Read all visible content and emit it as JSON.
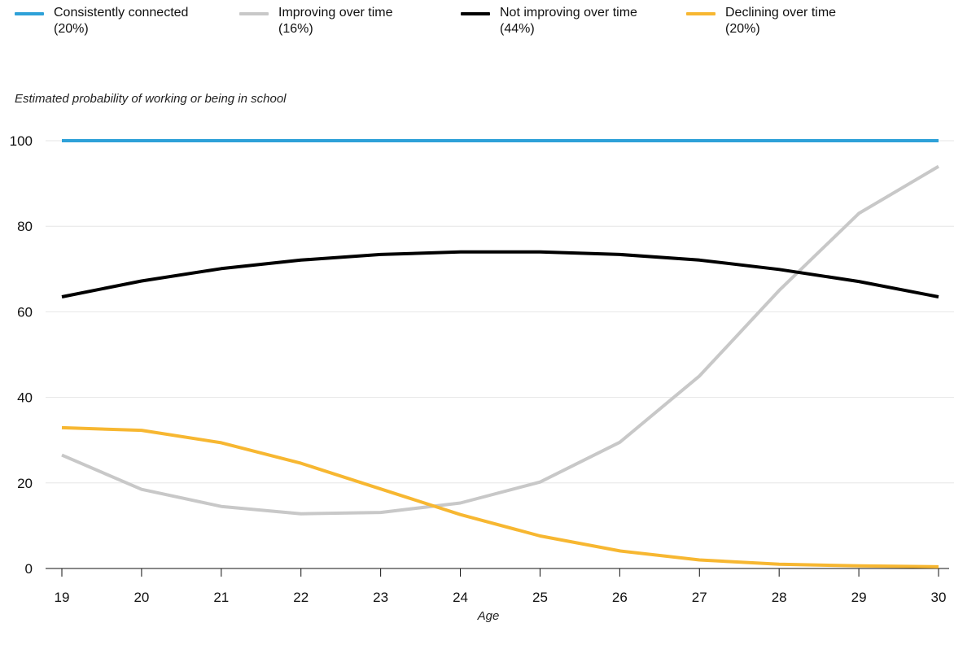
{
  "legend": [
    {
      "label": "Consistently connected",
      "share": "(20%)",
      "color": "#2ea1d8"
    },
    {
      "label": "Improving over time",
      "share": "(16%)",
      "color": "#c8c8c8"
    },
    {
      "label": "Not improving over time",
      "share": "(44%)",
      "color": "#000000"
    },
    {
      "label": "Declining over time",
      "share": "(20%)",
      "color": "#f7b731"
    }
  ],
  "chart_data": {
    "type": "line",
    "title": "",
    "xlabel": "Age",
    "ylabel": "Estimated probability of working or being in school",
    "x": [
      19,
      20,
      21,
      22,
      23,
      24,
      25,
      26,
      27,
      28,
      29,
      30
    ],
    "xlim": [
      19,
      30
    ],
    "ylim": [
      0,
      100
    ],
    "yticks": [
      0,
      20,
      40,
      60,
      80,
      100
    ],
    "grid": true,
    "legend_position": "top",
    "series": [
      {
        "name": "Consistently connected (20%)",
        "color": "#2ea1d8",
        "values": [
          100,
          100,
          100,
          100,
          100,
          100,
          100,
          100,
          100,
          100,
          100,
          100
        ]
      },
      {
        "name": "Improving over time (16%)",
        "color": "#c8c8c8",
        "values": [
          26.5,
          18.5,
          14.5,
          12.8,
          13.1,
          15.3,
          20.2,
          29.5,
          45,
          65,
          83,
          94
        ]
      },
      {
        "name": "Not improving over time (44%)",
        "color": "#000000",
        "values": [
          63.5,
          67.2,
          70.1,
          72.1,
          73.4,
          74,
          74,
          73.4,
          72.1,
          69.9,
          67.1,
          63.5
        ]
      },
      {
        "name": "Declining over time (20%)",
        "color": "#f7b731",
        "values": [
          32.9,
          32.3,
          29.4,
          24.6,
          18.6,
          12.6,
          7.6,
          4.1,
          2.0,
          1.0,
          0.6,
          0.4
        ]
      }
    ]
  }
}
